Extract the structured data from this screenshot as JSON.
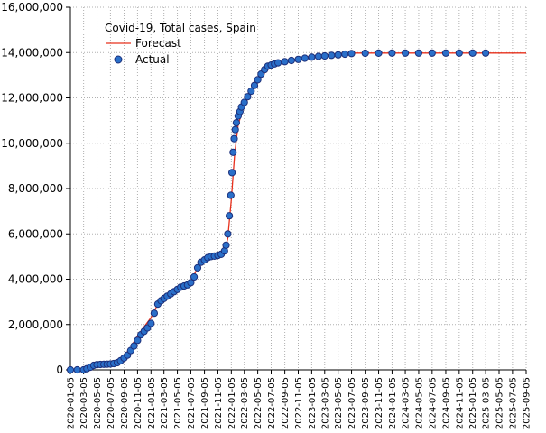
{
  "chart_data": {
    "type": "scatter",
    "title": "Covid-19, Total cases, Spain",
    "xlabel": "",
    "ylabel": "",
    "ylim": [
      0,
      16000000
    ],
    "xlim": [
      "2020-01-05",
      "2025-09-05"
    ],
    "y_ticks": [
      "0",
      "2,000,000",
      "4,000,000",
      "6,000,000",
      "8,000,000",
      "10,000,000",
      "12,000,000",
      "14,000,000",
      "16,000,000"
    ],
    "y_tick_values": [
      0,
      2000000,
      4000000,
      6000000,
      8000000,
      10000000,
      12000000,
      14000000,
      16000000
    ],
    "x_ticks": [
      "2020-01-05",
      "2020-03-05",
      "2020-05-05",
      "2020-07-05",
      "2020-09-05",
      "2020-11-05",
      "2021-01-05",
      "2021-03-05",
      "2021-05-05",
      "2021-07-05",
      "2021-09-05",
      "2021-11-05",
      "2022-01-05",
      "2022-03-05",
      "2022-05-05",
      "2022-07-05",
      "2022-09-05",
      "2022-11-05",
      "2023-01-05",
      "2023-03-05",
      "2023-05-05",
      "2023-07-05",
      "2023-09-05",
      "2023-11-05",
      "2024-01-05",
      "2024-03-05",
      "2024-05-05",
      "2024-07-05",
      "2024-09-05",
      "2024-11-05",
      "2025-01-05",
      "2025-03-05",
      "2025-05-05",
      "2025-07-05",
      "2025-09-05"
    ],
    "grid": true,
    "legend_position": "top-left",
    "colors": {
      "forecast": "#e8301c",
      "actual": "#2a6fc9",
      "actual_dark": "#1c2f7a",
      "grid": "#b0b0b0"
    },
    "series": [
      {
        "name": "Forecast",
        "kind": "line",
        "x": [
          "2020-01-05",
          "2020-03-05",
          "2020-04-05",
          "2020-05-05",
          "2020-07-05",
          "2020-08-05",
          "2020-09-05",
          "2020-10-05",
          "2020-11-05",
          "2020-12-05",
          "2021-01-05",
          "2021-02-05",
          "2021-03-05",
          "2021-04-05",
          "2021-05-05",
          "2021-06-05",
          "2021-07-05",
          "2021-08-05",
          "2021-09-05",
          "2021-10-05",
          "2021-11-05",
          "2021-12-05",
          "2021-12-20",
          "2022-01-05",
          "2022-01-20",
          "2022-02-05",
          "2022-02-20",
          "2022-03-05",
          "2022-04-05",
          "2022-05-05",
          "2022-06-05",
          "2022-07-05",
          "2022-08-05",
          "2022-09-05",
          "2022-11-05",
          "2023-01-05",
          "2023-03-05",
          "2023-05-05",
          "2023-07-05",
          "2025-09-05"
        ],
        "y": [
          0,
          0,
          150000,
          200000,
          250000,
          380000,
          600000,
          1000000,
          1500000,
          1900000,
          2300000,
          2900000,
          3200000,
          3450000,
          3650000,
          3750000,
          3900000,
          4500000,
          4900000,
          4950000,
          5000000,
          5200000,
          5800000,
          7500000,
          9500000,
          10800000,
          11300000,
          11700000,
          12200000,
          12700000,
          13100000,
          13400000,
          13500000,
          13550000,
          13750000,
          13850000,
          13900000,
          13950000,
          13980000,
          13980000
        ]
      },
      {
        "name": "Actual",
        "kind": "scatter",
        "x": [
          "2020-01-05",
          "2020-02-05",
          "2020-03-05",
          "2020-03-20",
          "2020-04-05",
          "2020-04-20",
          "2020-05-05",
          "2020-05-20",
          "2020-06-05",
          "2020-06-20",
          "2020-07-05",
          "2020-07-20",
          "2020-08-05",
          "2020-08-20",
          "2020-09-05",
          "2020-09-20",
          "2020-10-05",
          "2020-10-20",
          "2020-11-05",
          "2020-11-20",
          "2020-12-05",
          "2020-12-20",
          "2021-01-05",
          "2021-01-20",
          "2021-02-05",
          "2021-02-20",
          "2021-03-05",
          "2021-03-20",
          "2021-04-05",
          "2021-04-20",
          "2021-05-05",
          "2021-05-20",
          "2021-06-05",
          "2021-06-20",
          "2021-07-05",
          "2021-07-20",
          "2021-08-05",
          "2021-08-20",
          "2021-09-05",
          "2021-09-20",
          "2021-10-05",
          "2021-10-20",
          "2021-11-05",
          "2021-11-20",
          "2021-12-05",
          "2021-12-12",
          "2021-12-20",
          "2021-12-27",
          "2022-01-03",
          "2022-01-08",
          "2022-01-13",
          "2022-01-18",
          "2022-01-23",
          "2022-01-28",
          "2022-02-05",
          "2022-02-13",
          "2022-02-20",
          "2022-03-05",
          "2022-03-20",
          "2022-04-05",
          "2022-04-20",
          "2022-05-05",
          "2022-05-20",
          "2022-06-05",
          "2022-06-20",
          "2022-07-05",
          "2022-07-20",
          "2022-08-05",
          "2022-09-05",
          "2022-10-05",
          "2022-11-05",
          "2022-12-05",
          "2023-01-05",
          "2023-02-05",
          "2023-03-05",
          "2023-04-05",
          "2023-05-05",
          "2023-06-05",
          "2023-07-05",
          "2023-09-05",
          "2023-11-05",
          "2024-01-05",
          "2024-03-05",
          "2024-05-05",
          "2024-07-05",
          "2024-09-05",
          "2024-11-05",
          "2025-01-05",
          "2025-03-05"
        ],
        "y": [
          0,
          0,
          0,
          50000,
          120000,
          200000,
          230000,
          240000,
          245000,
          250000,
          260000,
          280000,
          320000,
          400000,
          520000,
          650000,
          850000,
          1050000,
          1300000,
          1550000,
          1700000,
          1850000,
          2050000,
          2500000,
          2900000,
          3050000,
          3150000,
          3250000,
          3350000,
          3450000,
          3550000,
          3650000,
          3700000,
          3750000,
          3850000,
          4100000,
          4500000,
          4750000,
          4850000,
          4950000,
          5000000,
          5020000,
          5050000,
          5100000,
          5250000,
          5500000,
          6000000,
          6800000,
          7700000,
          8700000,
          9600000,
          10200000,
          10600000,
          10900000,
          11200000,
          11400000,
          11600000,
          11800000,
          12050000,
          12300000,
          12550000,
          12800000,
          13050000,
          13250000,
          13400000,
          13450000,
          13500000,
          13550000,
          13600000,
          13650000,
          13700000,
          13750000,
          13800000,
          13830000,
          13850000,
          13880000,
          13900000,
          13930000,
          13960000,
          13970000,
          13975000,
          13978000,
          13980000,
          13980000,
          13980000,
          13980000,
          13980000,
          13980000,
          13980000
        ]
      }
    ]
  }
}
